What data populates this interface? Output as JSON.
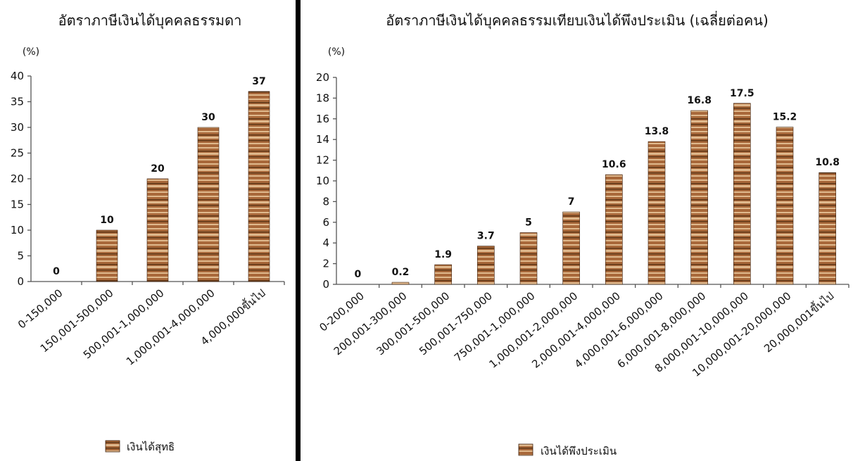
{
  "colors": {
    "bar_base": "#a8683a",
    "bar_light": "#e0b98d",
    "bar_dark": "#5e3616",
    "divider": "#000000"
  },
  "chart_data": [
    {
      "type": "bar",
      "title": "อัตราภาษีเงินได้บุคคลธรรมดา",
      "ylabel": "(%)",
      "ylim": [
        0,
        40
      ],
      "yticks": [
        0,
        5,
        10,
        15,
        20,
        25,
        30,
        35,
        40
      ],
      "categories": [
        "0-150,000",
        "150,001-500,000",
        "500,001-1,000,000",
        "1,000,001-4,000,000",
        "4,000,000ขึ้นไป"
      ],
      "series": [
        {
          "name": "เงินได้สุทธิ",
          "values": [
            0,
            10,
            20,
            30,
            37
          ],
          "labels": [
            "0",
            "10",
            "20",
            "30",
            "37"
          ]
        }
      ],
      "legend": "bottom"
    },
    {
      "type": "bar",
      "title": "อัตราภาษีเงินได้บุคคลธรรมเทียบเงินได้พึงประเมิน (เฉลี่ยต่อคน)",
      "ylabel": "(%)",
      "ylim": [
        0,
        20
      ],
      "yticks": [
        0,
        2,
        4,
        6,
        8,
        10,
        12,
        14,
        16,
        18,
        20
      ],
      "categories": [
        "0-200,000",
        "200,001-300,000",
        "300,001-500,000",
        "500,001-750,000",
        "750,001-1,000,000",
        "1,000,001-2,000,000",
        "2,000,001-4,000,000",
        "4,000,001-6,000,000",
        "6,000,001-8,000,000",
        "8,000,001-10,000,000",
        "10,000,001-20,000,000",
        "20,000,001ขึ้นไป"
      ],
      "series": [
        {
          "name": "เงินได้พึงประเมิน",
          "values": [
            0,
            0.2,
            1.9,
            3.7,
            5,
            7,
            10.6,
            13.8,
            16.8,
            17.5,
            15.2,
            10.8
          ],
          "labels": [
            "0",
            "0.2",
            "1.9",
            "3.7",
            "5",
            "7",
            "10.6",
            "13.8",
            "16.8",
            "17.5",
            "15.2",
            "10.8"
          ]
        }
      ],
      "legend": "bottom"
    }
  ]
}
